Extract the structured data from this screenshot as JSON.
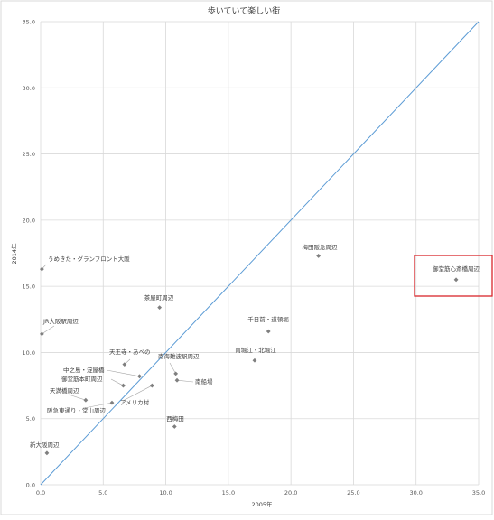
{
  "chart_data": {
    "type": "scatter",
    "title": "歩いていて楽しい街",
    "xlabel": "2005年",
    "ylabel": "2014年",
    "xlim": [
      0,
      35
    ],
    "ylim": [
      0,
      35
    ],
    "x_ticks": [
      "0.0",
      "5.0",
      "10.0",
      "15.0",
      "20.0",
      "25.0",
      "30.0",
      "35.0"
    ],
    "y_ticks": [
      "0.0",
      "5.0",
      "10.0",
      "15.0",
      "20.0",
      "25.0",
      "30.0",
      "35.0"
    ],
    "grid": true,
    "reference_line": {
      "from": [
        0,
        0
      ],
      "to": [
        35,
        35
      ],
      "color": "#5b9bd5"
    },
    "marker_color": "#7f7f7f",
    "highlight_color": "#d9262b",
    "points": [
      {
        "label": "うめきた・グランフロント大阪",
        "x": 0.1,
        "y": 16.3
      },
      {
        "label": "JR大阪駅周辺",
        "x": 0.1,
        "y": 11.4
      },
      {
        "label": "新大阪周辺",
        "x": 0.5,
        "y": 2.4
      },
      {
        "label": "梅田阪急周辺",
        "x": 22.2,
        "y": 17.3
      },
      {
        "label": "御堂筋心斎橋周辺",
        "x": 33.2,
        "y": 15.5,
        "highlight": true
      },
      {
        "label": "茶屋町周辺",
        "x": 9.5,
        "y": 13.4
      },
      {
        "label": "千日前・道頓堀",
        "x": 18.2,
        "y": 11.6
      },
      {
        "label": "南堀江・北堀江",
        "x": 17.1,
        "y": 9.4
      },
      {
        "label": "天王寺・あべの",
        "x": 6.7,
        "y": 9.1
      },
      {
        "label": "南海難波駅周辺",
        "x": 10.8,
        "y": 8.4
      },
      {
        "label": "中之島・淀屋橋",
        "x": 7.9,
        "y": 8.2
      },
      {
        "label": "南船場",
        "x": 10.9,
        "y": 7.9
      },
      {
        "label": "御堂筋本町周辺",
        "x": 6.6,
        "y": 7.5
      },
      {
        "label": "アメリカ村",
        "x": 8.9,
        "y": 7.5
      },
      {
        "label": "天満橋周辺",
        "x": 3.6,
        "y": 6.4
      },
      {
        "label": "阪急東通り・堂山周辺",
        "x": 5.7,
        "y": 6.2
      },
      {
        "label": "西梅田",
        "x": 10.7,
        "y": 4.4
      }
    ]
  }
}
